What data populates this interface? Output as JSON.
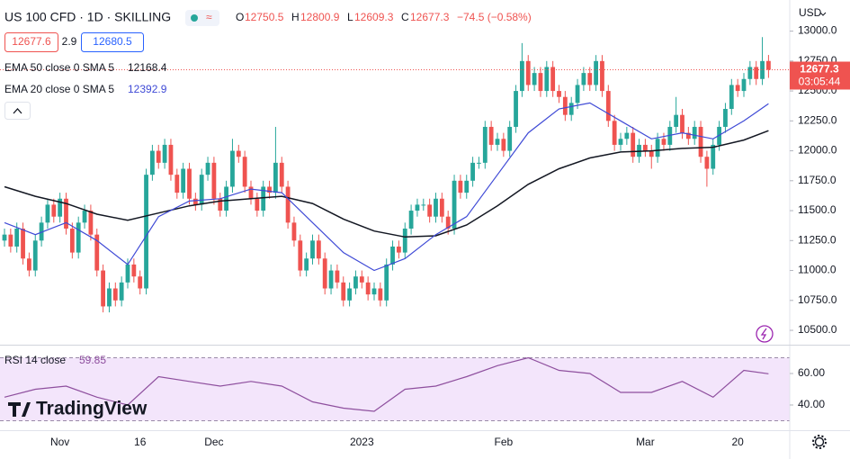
{
  "header": {
    "symbol": "US 100 CFD · 1D · SKILLING",
    "ohlc_labels": [
      "O",
      "H",
      "L",
      "C"
    ],
    "change": "−74.5 (−0.58%)"
  },
  "quote": {
    "bid": 12677.6,
    "spread": 2.9,
    "ask": 12680.5
  },
  "currency": "USD",
  "countdown": "03:05:44",
  "logo": "TradingView",
  "chart_data": [
    {
      "type": "candlestick",
      "up_color": "#26a69a",
      "down_color": "#ef5350",
      "last_price_line": true,
      "last_price_color": "#ef5350",
      "categories": [
        null,
        null,
        null,
        null,
        null,
        null,
        null,
        null,
        null,
        "Nov",
        null,
        null,
        null,
        null,
        null,
        null,
        null,
        null,
        null,
        null,
        null,
        null,
        "16",
        null,
        null,
        null,
        null,
        null,
        null,
        null,
        null,
        null,
        null,
        null,
        "Dec",
        null,
        null,
        null,
        null,
        null,
        null,
        null,
        null,
        null,
        null,
        null,
        null,
        null,
        null,
        null,
        null,
        null,
        null,
        null,
        null,
        null,
        null,
        null,
        "2023",
        null,
        null,
        null,
        null,
        null,
        null,
        null,
        null,
        null,
        null,
        null,
        null,
        null,
        null,
        null,
        null,
        null,
        null,
        null,
        null,
        null,
        null,
        "Feb",
        null,
        null,
        null,
        null,
        null,
        null,
        null,
        null,
        null,
        null,
        null,
        null,
        null,
        null,
        null,
        null,
        null,
        null,
        null,
        null,
        null,
        null,
        "Mar",
        null,
        null,
        null,
        null,
        null,
        null,
        null,
        null,
        null,
        null,
        null,
        null,
        null,
        null,
        "20",
        null,
        null,
        null,
        null,
        null
      ],
      "open": [
        11250,
        11300,
        11200,
        11350,
        11100,
        11000,
        11250,
        11400,
        11550,
        11450,
        11600,
        11350,
        11150,
        11400,
        11500,
        11300,
        11000,
        10700,
        10850,
        10750,
        10900,
        11050,
        10950,
        10850,
        11800,
        12000,
        11900,
        12050,
        11800,
        11650,
        11850,
        11600,
        11550,
        11800,
        11900,
        11600,
        11500,
        11700,
        12000,
        11950,
        11700,
        11600,
        11500,
        11700,
        11650,
        11900,
        11700,
        11400,
        11250,
        11000,
        11100,
        11250,
        11100,
        10850,
        11000,
        10900,
        10750,
        10850,
        10950,
        10900,
        10800,
        10850,
        10750,
        11050,
        11200,
        11150,
        11350,
        11500,
        11550,
        11550,
        11450,
        11600,
        11450,
        11350,
        11750,
        11650,
        11750,
        11900,
        11900,
        12200,
        12050,
        12100,
        12000,
        12200,
        12500,
        12750,
        12550,
        12650,
        12500,
        12700,
        12500,
        12450,
        12300,
        12400,
        12550,
        12650,
        12550,
        12750,
        12500,
        12250,
        12050,
        12100,
        12150,
        11950,
        12050,
        12000,
        11950,
        12100,
        12050,
        12200,
        12300,
        12150,
        12100,
        12200,
        11950,
        11850,
        12050,
        12200,
        12350,
        12550,
        12500,
        12600,
        12700,
        12600,
        12750.5
      ],
      "high": [
        11350,
        11350,
        11400,
        11400,
        11150,
        11300,
        11450,
        11600,
        11600,
        11650,
        11650,
        11400,
        11450,
        11550,
        11550,
        11350,
        11050,
        10900,
        10900,
        10950,
        11100,
        11100,
        11000,
        11850,
        12050,
        12050,
        12100,
        12100,
        11850,
        11900,
        11900,
        11650,
        11850,
        11950,
        11950,
        11650,
        11750,
        12100,
        12050,
        12000,
        11750,
        11650,
        11750,
        11750,
        12200,
        11950,
        11750,
        11450,
        11300,
        11150,
        11300,
        11300,
        11150,
        11050,
        11050,
        10950,
        10900,
        11000,
        11000,
        10950,
        10900,
        10900,
        11100,
        11250,
        11250,
        11400,
        11550,
        11600,
        11600,
        11600,
        11650,
        11650,
        11500,
        11800,
        11800,
        11800,
        11950,
        11950,
        12250,
        12250,
        12150,
        12150,
        12250,
        12550,
        12900,
        12800,
        12700,
        12700,
        12750,
        12750,
        12550,
        12500,
        12450,
        12600,
        12700,
        12700,
        12800,
        12800,
        12550,
        12300,
        12150,
        12200,
        12200,
        12100,
        12100,
        12050,
        12150,
        12150,
        12250,
        12450,
        12350,
        12200,
        12250,
        12250,
        12000,
        12100,
        12250,
        12400,
        12600,
        12600,
        12650,
        12750,
        12750,
        12950,
        12800.9
      ],
      "low": [
        11200,
        11150,
        11150,
        11050,
        10950,
        10950,
        11200,
        11350,
        11400,
        11400,
        11300,
        11100,
        11100,
        11350,
        11250,
        10950,
        10650,
        10650,
        10700,
        10700,
        10850,
        10900,
        10800,
        10800,
        11750,
        11850,
        11850,
        11750,
        11600,
        11600,
        11550,
        11500,
        11500,
        11750,
        11550,
        11450,
        11450,
        11650,
        11900,
        11650,
        11550,
        11450,
        11450,
        11600,
        11600,
        11650,
        11350,
        11200,
        10950,
        10950,
        11050,
        11050,
        10800,
        10800,
        10850,
        10700,
        10700,
        10800,
        10850,
        10750,
        10750,
        10700,
        10700,
        11000,
        11100,
        11100,
        11300,
        11450,
        11500,
        11400,
        11400,
        11400,
        11300,
        11300,
        11600,
        11600,
        11700,
        11850,
        11850,
        12000,
        12000,
        11950,
        11950,
        12150,
        12450,
        12500,
        12500,
        12450,
        12450,
        12450,
        12400,
        12250,
        12250,
        12350,
        12500,
        12500,
        12500,
        12450,
        12200,
        12000,
        12000,
        12050,
        11900,
        11900,
        11950,
        11850,
        11900,
        12000,
        12000,
        12150,
        12100,
        12050,
        12050,
        11900,
        11700,
        11800,
        12000,
        12150,
        12300,
        12450,
        12450,
        12550,
        12550,
        12550,
        12609.3
      ],
      "close": [
        11300,
        11200,
        11350,
        11100,
        11000,
        11250,
        11400,
        11550,
        11450,
        11600,
        11350,
        11150,
        11400,
        11500,
        11300,
        11000,
        10700,
        10850,
        10750,
        10900,
        11050,
        10950,
        10850,
        11800,
        12000,
        11900,
        12050,
        11800,
        11650,
        11850,
        11600,
        11550,
        11800,
        11900,
        11600,
        11500,
        11700,
        12000,
        11950,
        11700,
        11600,
        11500,
        11700,
        11650,
        11900,
        11700,
        11400,
        11250,
        11000,
        11100,
        11250,
        11100,
        10850,
        11000,
        10900,
        10750,
        10850,
        10950,
        10900,
        10800,
        10850,
        10750,
        11050,
        11200,
        11150,
        11350,
        11500,
        11550,
        11550,
        11450,
        11600,
        11450,
        11350,
        11750,
        11650,
        11750,
        11900,
        11900,
        12200,
        12050,
        12100,
        12000,
        12200,
        12500,
        12750,
        12550,
        12650,
        12500,
        12700,
        12500,
        12450,
        12300,
        12400,
        12550,
        12650,
        12550,
        12750,
        12500,
        12250,
        12050,
        12100,
        12150,
        11950,
        12050,
        12000,
        11950,
        12100,
        12050,
        12200,
        12300,
        12150,
        12100,
        12200,
        11950,
        11850,
        12050,
        12200,
        12350,
        12550,
        12500,
        12600,
        12700,
        12600,
        12750,
        12677.3
      ],
      "series": [
        {
          "name": "EMA 50 close 0 SMA 5",
          "color": "#131722",
          "x": [
            0,
            5,
            10,
            15,
            20,
            25,
            30,
            35,
            40,
            45,
            50,
            55,
            60,
            65,
            70,
            75,
            80,
            85,
            90,
            95,
            100,
            105,
            110,
            115,
            120,
            124
          ],
          "values": [
            11700,
            11620,
            11560,
            11470,
            11420,
            11480,
            11540,
            11580,
            11600,
            11620,
            11560,
            11430,
            11330,
            11280,
            11290,
            11380,
            11540,
            11720,
            11850,
            11940,
            11990,
            12000,
            12020,
            12030,
            12090,
            12168.4
          ]
        },
        {
          "name": "EMA 20 close 0 SMA 5",
          "color": "#3f4ad6",
          "x": [
            0,
            5,
            10,
            15,
            20,
            25,
            30,
            35,
            40,
            45,
            50,
            55,
            60,
            65,
            70,
            75,
            80,
            85,
            90,
            95,
            100,
            105,
            110,
            115,
            120,
            124
          ],
          "values": [
            11400,
            11300,
            11400,
            11250,
            11050,
            11450,
            11580,
            11600,
            11680,
            11650,
            11400,
            11150,
            11000,
            11100,
            11300,
            11450,
            11800,
            12150,
            12350,
            12400,
            12250,
            12100,
            12150,
            12100,
            12250,
            12392.9
          ]
        }
      ],
      "ylim": [
        10380,
        13260
      ],
      "yticks": [
        {
          "value": 10500,
          "label": "10500.0"
        },
        {
          "value": 10750,
          "label": "10750.0"
        },
        {
          "value": 11000,
          "label": "11000.0"
        },
        {
          "value": 11250,
          "label": "11250.0"
        },
        {
          "value": 11500,
          "label": "11500.0"
        },
        {
          "value": 11750,
          "label": "11750.0"
        },
        {
          "value": 12000,
          "label": "12000.0"
        },
        {
          "value": 12250,
          "label": "12250.0"
        },
        {
          "value": 12500,
          "label": "12500.0"
        },
        {
          "value": 12750,
          "label": "12750.0"
        },
        {
          "value": 13000,
          "label": "13000.0"
        }
      ]
    },
    {
      "type": "line",
      "title": "RSI 14 close",
      "color": "#8e4f9e",
      "band": [
        30,
        70
      ],
      "band_color": "#f3e5fb",
      "x": [
        0,
        5,
        10,
        15,
        20,
        25,
        30,
        35,
        40,
        45,
        50,
        55,
        60,
        65,
        70,
        75,
        80,
        85,
        90,
        95,
        100,
        105,
        110,
        115,
        120,
        124
      ],
      "values": [
        45,
        50,
        52,
        45,
        40,
        58,
        55,
        52,
        55,
        52,
        42,
        38,
        36,
        50,
        52,
        58,
        65,
        70,
        62,
        60,
        48,
        48,
        55,
        45,
        62,
        59.85
      ],
      "ylim": [
        24,
        78.3
      ],
      "yticks": [
        {
          "value": 60,
          "label": "60.00"
        },
        {
          "value": 40,
          "label": "40.00"
        }
      ]
    }
  ]
}
